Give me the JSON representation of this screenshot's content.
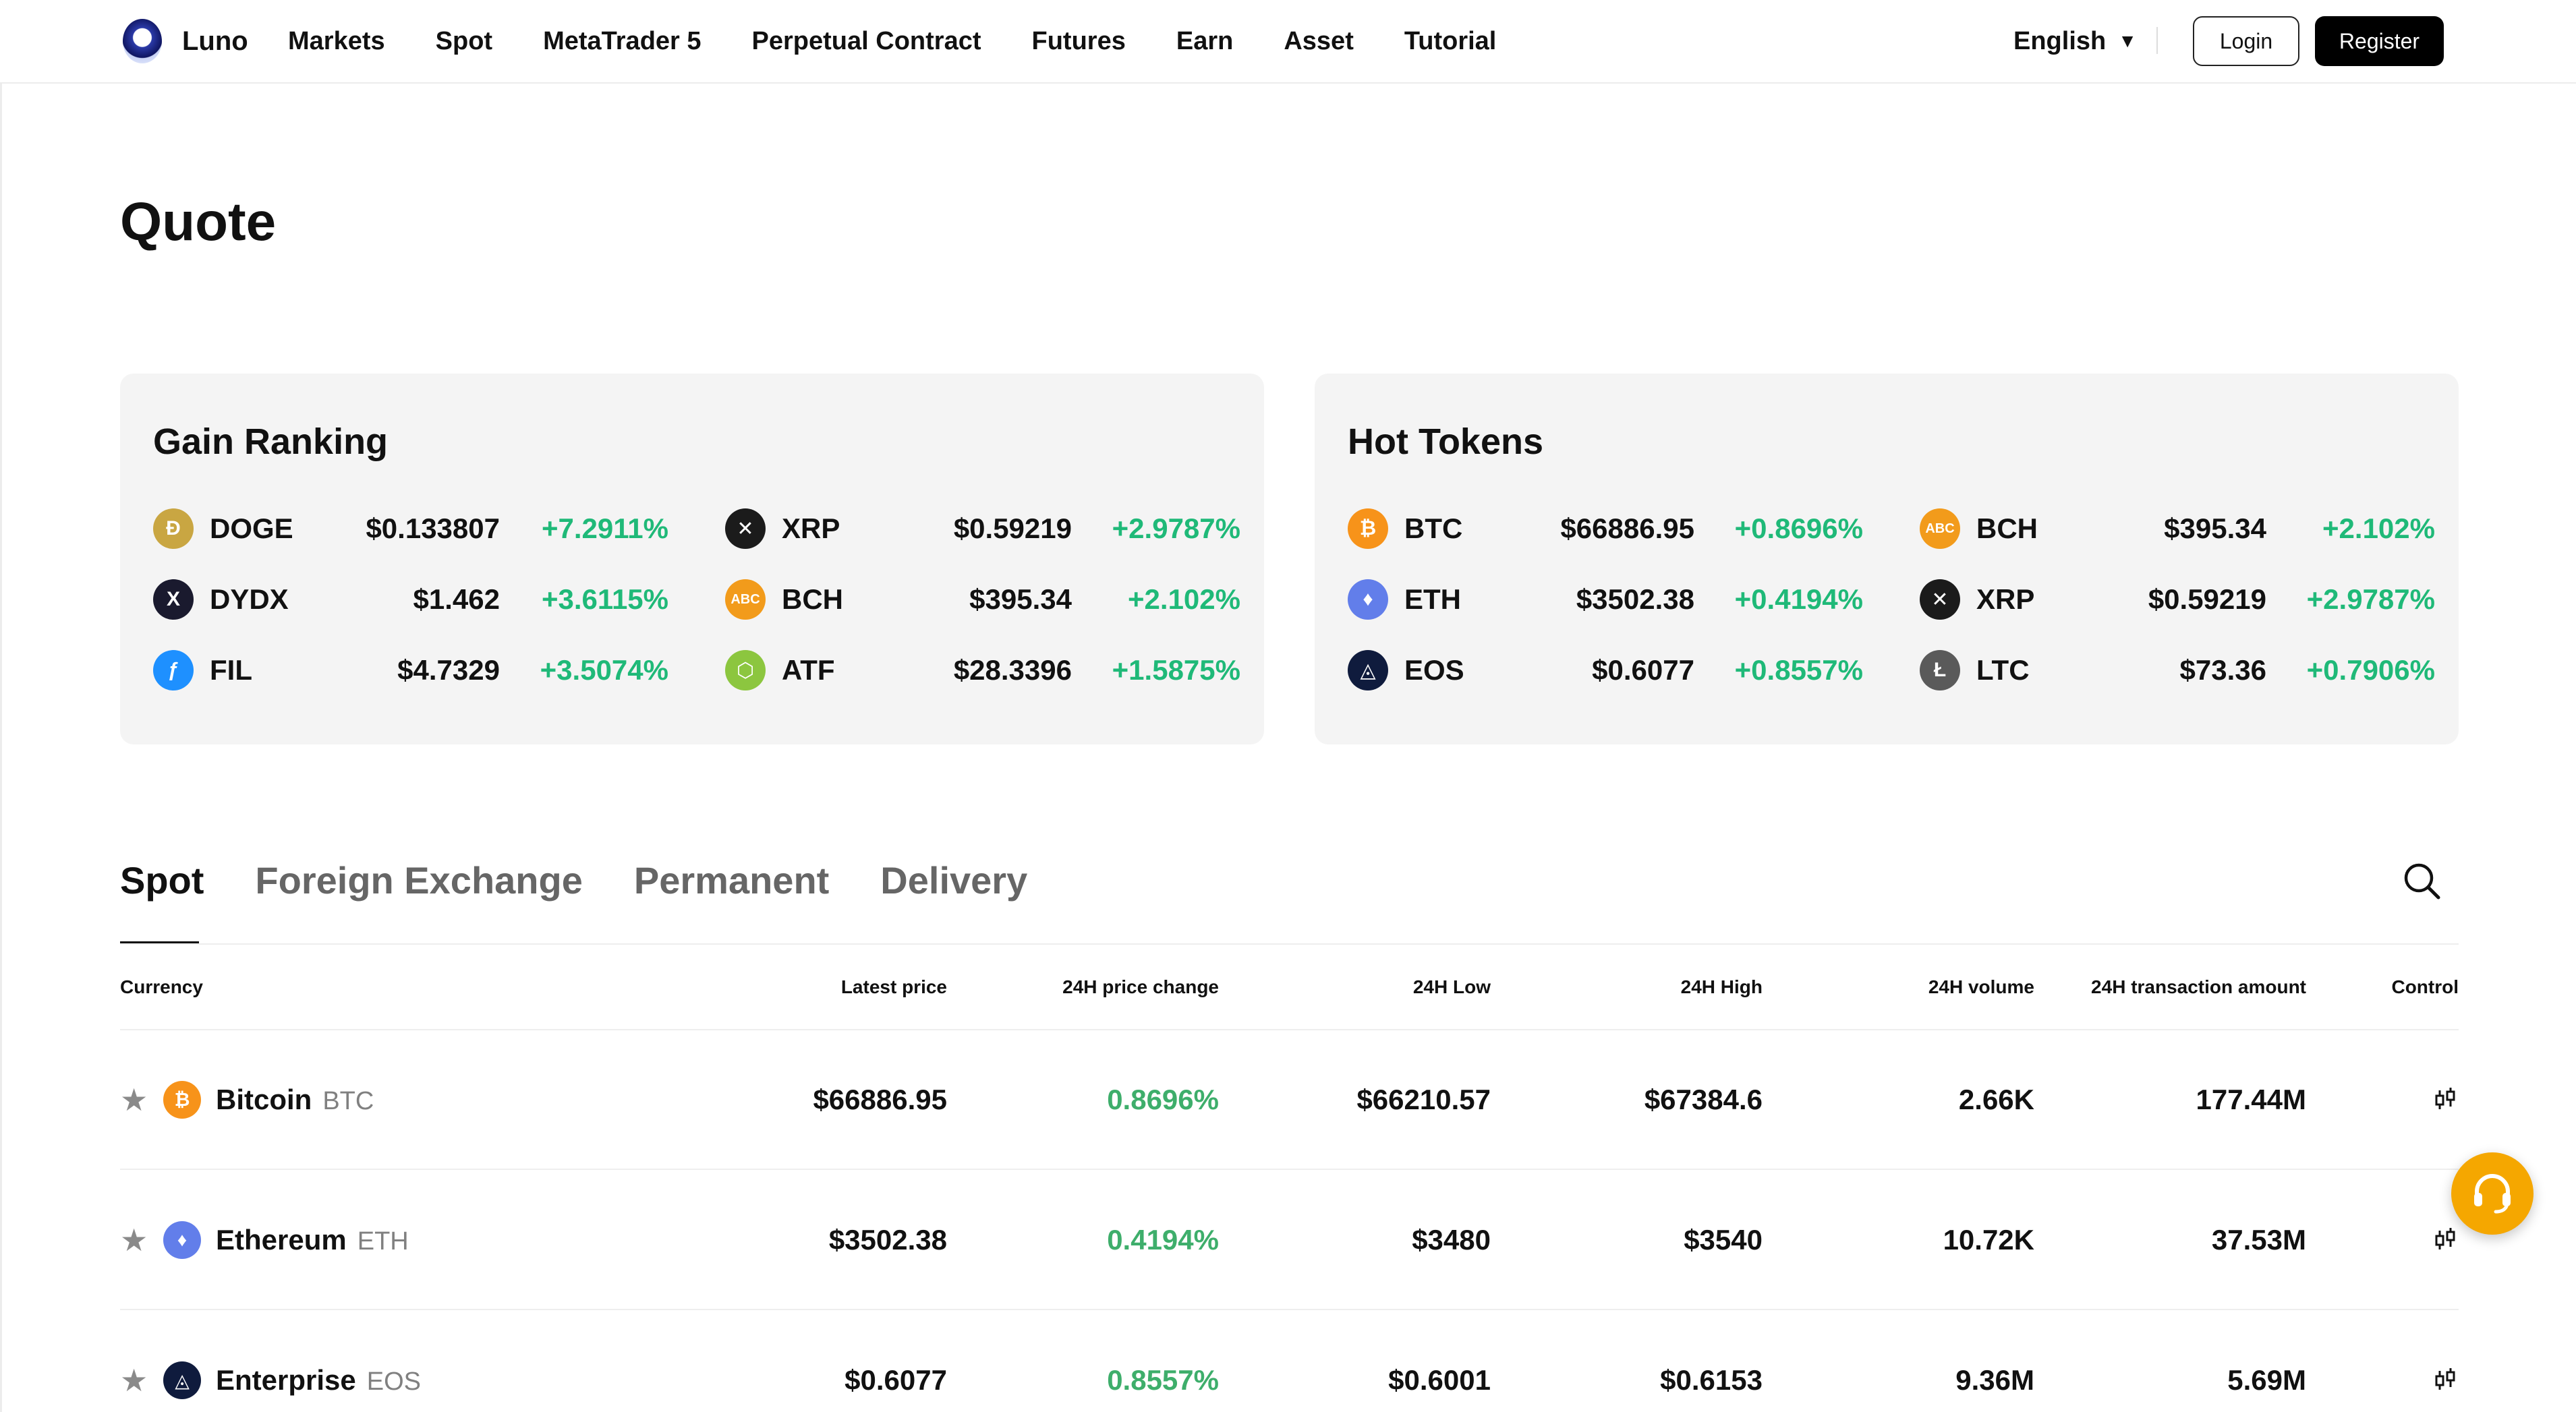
{
  "brand": {
    "name": "Luno"
  },
  "nav": [
    "Markets",
    "Spot",
    "MetaTrader 5",
    "Perpetual Contract",
    "Futures",
    "Earn",
    "Asset",
    "Tutorial"
  ],
  "header": {
    "language": "English",
    "login": "Login",
    "register": "Register"
  },
  "page": {
    "title": "Quote"
  },
  "gain_ranking": {
    "title": "Gain Ranking",
    "items": [
      {
        "symbol": "DOGE",
        "price": "$0.133807",
        "change": "+7.2911%",
        "icon": "doge-icon",
        "color": "#c9a642"
      },
      {
        "symbol": "XRP",
        "price": "$0.59219",
        "change": "+2.9787%",
        "icon": "xrp-icon",
        "color": "#1b1b1b"
      },
      {
        "symbol": "DYDX",
        "price": "$1.462",
        "change": "+3.6115%",
        "icon": "dydx-icon",
        "color": "#1a1a2e"
      },
      {
        "symbol": "BCH",
        "price": "$395.34",
        "change": "+2.102%",
        "icon": "bch-icon",
        "color": "#f29b1b"
      },
      {
        "symbol": "FIL",
        "price": "$4.7329",
        "change": "+3.5074%",
        "icon": "fil-icon",
        "color": "#1e90ff"
      },
      {
        "symbol": "ATF",
        "price": "$28.3396",
        "change": "+1.5875%",
        "icon": "atf-icon",
        "color": "#8cc63f"
      }
    ]
  },
  "hot_tokens": {
    "title": "Hot Tokens",
    "items": [
      {
        "symbol": "BTC",
        "price": "$66886.95",
        "change": "+0.8696%",
        "icon": "btc-icon",
        "color": "#f7931a"
      },
      {
        "symbol": "BCH",
        "price": "$395.34",
        "change": "+2.102%",
        "icon": "bch-icon",
        "color": "#f29b1b"
      },
      {
        "symbol": "ETH",
        "price": "$3502.38",
        "change": "+0.4194%",
        "icon": "eth-icon",
        "color": "#627eea"
      },
      {
        "symbol": "XRP",
        "price": "$0.59219",
        "change": "+2.9787%",
        "icon": "xrp-icon",
        "color": "#1b1b1b"
      },
      {
        "symbol": "EOS",
        "price": "$0.6077",
        "change": "+0.8557%",
        "icon": "eos-icon",
        "color": "#0f1b3d"
      },
      {
        "symbol": "LTC",
        "price": "$73.36",
        "change": "+0.7906%",
        "icon": "ltc-icon",
        "color": "#5a5a5a"
      }
    ]
  },
  "tabs": [
    "Spot",
    "Foreign Exchange",
    "Permanent",
    "Delivery"
  ],
  "table": {
    "headers": [
      "Currency",
      "Latest price",
      "24H price change",
      "24H Low",
      "24H High",
      "24H volume",
      "24H transaction amount",
      "Control"
    ],
    "rows": [
      {
        "name": "Bitcoin",
        "symbol": "BTC",
        "price": "$66886.95",
        "change": "0.8696%",
        "low": "$66210.57",
        "high": "$67384.6",
        "volume": "2.66K",
        "amount": "177.44M",
        "icon": "btc-icon",
        "color": "#f7931a"
      },
      {
        "name": "Ethereum",
        "symbol": "ETH",
        "price": "$3502.38",
        "change": "0.4194%",
        "low": "$3480",
        "high": "$3540",
        "volume": "10.72K",
        "amount": "37.53M",
        "icon": "eth-icon",
        "color": "#627eea"
      },
      {
        "name": "Enterprise",
        "symbol": "EOS",
        "price": "$0.6077",
        "change": "0.8557%",
        "low": "$0.6001",
        "high": "$0.6153",
        "volume": "9.36M",
        "amount": "5.69M",
        "icon": "eos-icon",
        "color": "#0f1b3d"
      }
    ]
  },
  "colors": {
    "gain": "#1fb978",
    "table_gain": "#3eae6b",
    "support": "#f5a700"
  }
}
